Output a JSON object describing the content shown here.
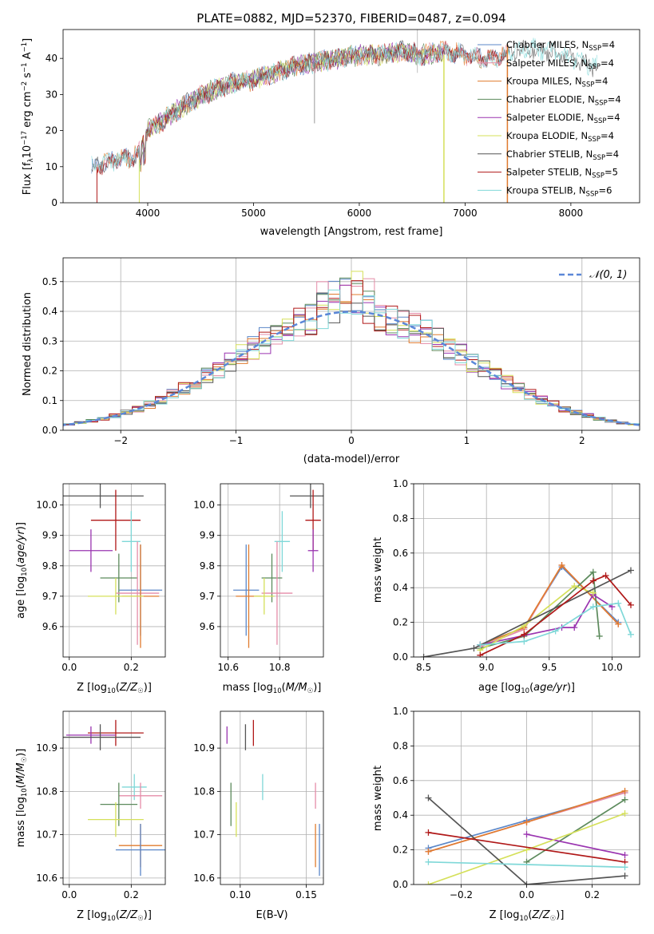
{
  "title": "PLATE=0882, MJD=52370, FIBERID=0487, z=0.094",
  "colors": {
    "Chabrier MILES": "#5b87c8",
    "Salpeter MILES": "#e58ca8",
    "Kroupa MILES": "#e07b2e",
    "Chabrier ELODIE": "#5c8a5c",
    "Salpeter ELODIE": "#9a34b0",
    "Kroupa ELODIE": "#d5e05a",
    "Chabrier STELIB": "#555555",
    "Salpeter STELIB": "#b01818",
    "Kroupa STELIB": "#7fd8d8"
  },
  "chart_data": [
    {
      "type": "line",
      "name": "spectrum",
      "xlabel": "wavelength [Angstrom, rest frame]",
      "ylabel": "Flux [f_λ10^-17 erg cm^-2 s^-1 A^-1]",
      "xlim": [
        3200,
        8650
      ],
      "ylim": [
        0,
        48
      ],
      "xticks": [
        4000,
        5000,
        6000,
        7000,
        8000
      ],
      "yticks": [
        0,
        10,
        20,
        30,
        40
      ],
      "grid": false,
      "legend_position": "top-right",
      "x": [
        3500,
        3700,
        3900,
        4000,
        4200,
        4400,
        4600,
        4800,
        5000,
        5200,
        5400,
        5600,
        5800,
        6000,
        6200,
        6400,
        6600,
        6800,
        7000,
        7200,
        7400,
        7600,
        7800,
        8000,
        8200
      ],
      "y": [
        10,
        12,
        13,
        20,
        24,
        28,
        31,
        33,
        34,
        36,
        38,
        39,
        40,
        41,
        41,
        42,
        41,
        42,
        41,
        40,
        41,
        43,
        42,
        40,
        38
      ],
      "legend": [
        {
          "label": "Chabrier MILES, N_SSP=4",
          "color_key": "Chabrier MILES"
        },
        {
          "label": "Salpeter MILES, N_SSP=4",
          "color_key": "Salpeter MILES"
        },
        {
          "label": "Kroupa MILES, N_SSP=4",
          "color_key": "Kroupa MILES"
        },
        {
          "label": "Chabrier ELODIE, N_SSP=4",
          "color_key": "Chabrier ELODIE"
        },
        {
          "label": "Salpeter ELODIE, N_SSP=4",
          "color_key": "Salpeter ELODIE"
        },
        {
          "label": "Kroupa ELODIE, N_SSP=4",
          "color_key": "Kroupa ELODIE"
        },
        {
          "label": "Chabrier STELIB, N_SSP=4",
          "color_key": "Chabrier STELIB"
        },
        {
          "label": "Salpeter STELIB, N_SSP=5",
          "color_key": "Salpeter STELIB"
        },
        {
          "label": "Kroupa STELIB, N_SSP=6",
          "color_key": "Kroupa STELIB"
        }
      ]
    },
    {
      "type": "histogram",
      "name": "residuals",
      "xlabel": "(data-model)/error",
      "ylabel": "Normed distribution",
      "xlim": [
        -2.5,
        2.5
      ],
      "ylim": [
        0,
        0.58
      ],
      "xticks": [
        -2,
        -1,
        0,
        1,
        2
      ],
      "yticks": [
        0.0,
        0.1,
        0.2,
        0.3,
        0.4,
        0.5
      ],
      "grid": true,
      "legend_position": "top-right",
      "reference_curve": "N(0,1)",
      "bin_width": 0.1,
      "bins_example": [
        0.02,
        0.03,
        0.05,
        0.08,
        0.12,
        0.15,
        0.21,
        0.27,
        0.33,
        0.37,
        0.4,
        0.4,
        0.37,
        0.33,
        0.27,
        0.21,
        0.15,
        0.12,
        0.08,
        0.05,
        0.03
      ]
    },
    {
      "type": "scatter",
      "name": "Z vs age",
      "xlabel": "Z [log10(Z/Z☉)]",
      "ylabel": "age  [log10(age/yr)]",
      "xlim": [
        -0.02,
        0.31
      ],
      "ylim": [
        9.5,
        10.07
      ],
      "xticks": [
        0.0,
        0.2
      ],
      "yticks": [
        9.6,
        9.7,
        9.8,
        9.9,
        10.0
      ],
      "grid": true,
      "points": [
        {
          "color_key": "Chabrier STELIB",
          "x": 0.1,
          "y": 10.03,
          "xerr": 0.14,
          "yerr": 0.04
        },
        {
          "color_key": "Salpeter STELIB",
          "x": 0.15,
          "y": 9.95,
          "xerr": 0.08,
          "yerr": 0.1
        },
        {
          "color_key": "Kroupa STELIB",
          "x": 0.2,
          "y": 9.88,
          "xerr": 0.03,
          "yerr": 0.1
        },
        {
          "color_key": "Salpeter ELODIE",
          "x": 0.07,
          "y": 9.85,
          "xerr": 0.07,
          "yerr": 0.07
        },
        {
          "color_key": "Chabrier ELODIE",
          "x": 0.16,
          "y": 9.76,
          "xerr": 0.06,
          "yerr": 0.08
        },
        {
          "color_key": "Chabrier MILES",
          "x": 0.23,
          "y": 9.72,
          "xerr": 0.07,
          "yerr": 0.15
        },
        {
          "color_key": "Salpeter MILES",
          "x": 0.22,
          "y": 9.71,
          "xerr": 0.07,
          "yerr": 0.17
        },
        {
          "color_key": "Kroupa MILES",
          "x": 0.23,
          "y": 9.7,
          "xerr": 0.06,
          "yerr": 0.17
        },
        {
          "color_key": "Kroupa ELODIE",
          "x": 0.15,
          "y": 9.7,
          "xerr": 0.09,
          "yerr": 0.06
        }
      ]
    },
    {
      "type": "scatter",
      "name": "mass vs age",
      "xlabel": "mass [log10(M/M☉)]",
      "ylabel": "",
      "xlim": [
        10.57,
        10.97
      ],
      "ylim": [
        9.5,
        10.07
      ],
      "xticks": [
        10.6,
        10.8
      ],
      "yticks": [
        9.6,
        9.7,
        9.8,
        9.9,
        10.0
      ],
      "grid": true,
      "points": [
        {
          "color_key": "Chabrier STELIB",
          "x": 10.92,
          "y": 10.03,
          "xerr": 0.08,
          "yerr": 0.04
        },
        {
          "color_key": "Salpeter STELIB",
          "x": 10.93,
          "y": 9.95,
          "xerr": 0.03,
          "yerr": 0.1
        },
        {
          "color_key": "Kroupa STELIB",
          "x": 10.81,
          "y": 9.88,
          "xerr": 0.03,
          "yerr": 0.1
        },
        {
          "color_key": "Salpeter ELODIE",
          "x": 10.93,
          "y": 9.85,
          "xerr": 0.02,
          "yerr": 0.07
        },
        {
          "color_key": "Chabrier ELODIE",
          "x": 10.77,
          "y": 9.76,
          "xerr": 0.04,
          "yerr": 0.08
        },
        {
          "color_key": "Chabrier MILES",
          "x": 10.67,
          "y": 9.72,
          "xerr": 0.05,
          "yerr": 0.15
        },
        {
          "color_key": "Salpeter MILES",
          "x": 10.79,
          "y": 9.71,
          "xerr": 0.06,
          "yerr": 0.17
        },
        {
          "color_key": "Kroupa MILES",
          "x": 10.68,
          "y": 9.7,
          "xerr": 0.05,
          "yerr": 0.17
        },
        {
          "color_key": "Kroupa ELODIE",
          "x": 10.74,
          "y": 9.7,
          "xerr": 0.04,
          "yerr": 0.06
        }
      ]
    },
    {
      "type": "line",
      "name": "age mass weight",
      "xlabel": "age  [log10(age/yr)]",
      "ylabel": "mass weight",
      "xlim": [
        8.42,
        10.22
      ],
      "ylim": [
        0,
        1.0
      ],
      "xticks": [
        8.5,
        9.0,
        9.5,
        10.0
      ],
      "yticks": [
        0.0,
        0.2,
        0.4,
        0.6,
        0.8,
        1.0
      ],
      "grid": true,
      "series": [
        {
          "color_key": "Chabrier MILES",
          "x": [
            8.95,
            9.3,
            9.6,
            10.05
          ],
          "y": [
            0.07,
            0.17,
            0.52,
            0.2
          ]
        },
        {
          "color_key": "Salpeter MILES",
          "x": [
            8.95,
            9.3,
            9.6,
            10.05
          ],
          "y": [
            0.06,
            0.16,
            0.53,
            0.19
          ]
        },
        {
          "color_key": "Kroupa MILES",
          "x": [
            8.95,
            9.3,
            9.6,
            10.05
          ],
          "y": [
            0.07,
            0.17,
            0.53,
            0.19
          ]
        },
        {
          "color_key": "Chabrier ELODIE",
          "x": [
            8.95,
            9.3,
            9.85,
            9.9
          ],
          "y": [
            0.05,
            0.12,
            0.49,
            0.12
          ]
        },
        {
          "color_key": "Salpeter ELODIE",
          "x": [
            8.95,
            9.6,
            9.7,
            9.85,
            10.0
          ],
          "y": [
            0.07,
            0.17,
            0.17,
            0.36,
            0.29
          ]
        },
        {
          "color_key": "Kroupa ELODIE",
          "x": [
            8.95,
            9.3,
            9.7,
            9.85
          ],
          "y": [
            0.04,
            0.18,
            0.41,
            0.37
          ]
        },
        {
          "color_key": "Chabrier STELIB",
          "x": [
            8.5,
            8.9,
            10.15
          ],
          "y": [
            0.0,
            0.05,
            0.5
          ]
        },
        {
          "color_key": "Salpeter STELIB",
          "x": [
            8.95,
            9.3,
            9.85,
            9.95,
            10.15
          ],
          "y": [
            0.01,
            0.13,
            0.44,
            0.47,
            0.3
          ]
        },
        {
          "color_key": "Kroupa STELIB",
          "x": [
            8.95,
            9.3,
            9.55,
            9.85,
            10.05,
            10.15
          ],
          "y": [
            0.07,
            0.09,
            0.15,
            0.29,
            0.31,
            0.13
          ]
        }
      ]
    },
    {
      "type": "scatter",
      "name": "Z vs mass",
      "xlabel": "Z [log10(Z/Z☉)]",
      "ylabel": "mass [log10(M/M☉)]",
      "xlim": [
        -0.02,
        0.31
      ],
      "ylim": [
        10.585,
        10.985
      ],
      "xticks": [
        0.0,
        0.2
      ],
      "yticks": [
        10.6,
        10.7,
        10.8,
        10.9
      ],
      "grid": true,
      "points": [
        {
          "color_key": "Salpeter STELIB",
          "x": 0.15,
          "y": 10.935,
          "xerr": 0.09,
          "yerr": 0.03
        },
        {
          "color_key": "Salpeter ELODIE",
          "x": 0.07,
          "y": 10.93,
          "xerr": 0.08,
          "yerr": 0.02
        },
        {
          "color_key": "Chabrier STELIB",
          "x": 0.1,
          "y": 10.925,
          "xerr": 0.13,
          "yerr": 0.03
        },
        {
          "color_key": "Kroupa STELIB",
          "x": 0.21,
          "y": 10.81,
          "xerr": 0.04,
          "yerr": 0.03
        },
        {
          "color_key": "Salpeter MILES",
          "x": 0.23,
          "y": 10.79,
          "xerr": 0.07,
          "yerr": 0.03
        },
        {
          "color_key": "Chabrier ELODIE",
          "x": 0.16,
          "y": 10.77,
          "xerr": 0.06,
          "yerr": 0.05
        },
        {
          "color_key": "Kroupa ELODIE",
          "x": 0.15,
          "y": 10.735,
          "xerr": 0.09,
          "yerr": 0.04
        },
        {
          "color_key": "Kroupa MILES",
          "x": 0.23,
          "y": 10.675,
          "xerr": 0.07,
          "yerr": 0.05
        },
        {
          "color_key": "Chabrier MILES",
          "x": 0.23,
          "y": 10.665,
          "xerr": 0.08,
          "yerr": 0.06
        }
      ]
    },
    {
      "type": "scatter",
      "name": "E(B-V) vs mass",
      "xlabel": "E(B-V)",
      "ylabel": "",
      "xlim": [
        0.085,
        0.163
      ],
      "ylim": [
        10.585,
        10.985
      ],
      "xticks": [
        0.1,
        0.15
      ],
      "yticks": [
        10.6,
        10.7,
        10.8,
        10.9
      ],
      "grid": true,
      "points": [
        {
          "color_key": "Salpeter STELIB",
          "x": 0.11,
          "y": 10.935,
          "yerr": 0.03
        },
        {
          "color_key": "Salpeter ELODIE",
          "x": 0.09,
          "y": 10.93,
          "yerr": 0.02
        },
        {
          "color_key": "Chabrier STELIB",
          "x": 0.104,
          "y": 10.925,
          "yerr": 0.03
        },
        {
          "color_key": "Kroupa STELIB",
          "x": 0.117,
          "y": 10.81,
          "yerr": 0.03
        },
        {
          "color_key": "Salpeter MILES",
          "x": 0.157,
          "y": 10.79,
          "yerr": 0.03
        },
        {
          "color_key": "Chabrier ELODIE",
          "x": 0.093,
          "y": 10.77,
          "yerr": 0.05
        },
        {
          "color_key": "Kroupa ELODIE",
          "x": 0.097,
          "y": 10.735,
          "yerr": 0.04
        },
        {
          "color_key": "Kroupa MILES",
          "x": 0.157,
          "y": 10.675,
          "yerr": 0.05
        },
        {
          "color_key": "Chabrier MILES",
          "x": 0.16,
          "y": 10.665,
          "yerr": 0.06
        }
      ]
    },
    {
      "type": "line",
      "name": "Z mass weight",
      "xlabel": "Z [log10(Z/Z☉)]",
      "ylabel": "mass weight",
      "xlim": [
        -0.345,
        0.345
      ],
      "ylim": [
        0,
        1.0
      ],
      "xticks": [
        -0.2,
        0.0,
        0.2
      ],
      "yticks": [
        0.0,
        0.2,
        0.4,
        0.6,
        0.8,
        1.0
      ],
      "grid": true,
      "series": [
        {
          "color_key": "Chabrier MILES",
          "x": [
            -0.3,
            0.0,
            0.3
          ],
          "y": [
            0.21,
            0.37,
            0.53
          ]
        },
        {
          "color_key": "Salpeter MILES",
          "x": [
            -0.3,
            0.0,
            0.3
          ],
          "y": [
            0.19,
            0.36,
            0.53
          ]
        },
        {
          "color_key": "Kroupa MILES",
          "x": [
            -0.3,
            0.0,
            0.3
          ],
          "y": [
            0.19,
            0.36,
            0.54
          ]
        },
        {
          "color_key": "Chabrier ELODIE",
          "x": [
            0.0,
            0.3
          ],
          "y": [
            0.13,
            0.49
          ]
        },
        {
          "color_key": "Salpeter ELODIE",
          "x": [
            0.0,
            0.3
          ],
          "y": [
            0.29,
            0.17
          ]
        },
        {
          "color_key": "Kroupa ELODIE",
          "x": [
            -0.3,
            0.0,
            0.3
          ],
          "y": [
            0.0,
            0.2,
            0.41
          ]
        },
        {
          "color_key": "Chabrier STELIB",
          "x": [
            -0.3,
            0.0,
            0.3
          ],
          "y": [
            0.5,
            0.0,
            0.05
          ]
        },
        {
          "color_key": "Salpeter STELIB",
          "x": [
            -0.3,
            0.3
          ],
          "y": [
            0.3,
            0.13
          ]
        },
        {
          "color_key": "Kroupa STELIB",
          "x": [
            -0.3,
            0.3
          ],
          "y": [
            0.13,
            0.1
          ]
        }
      ]
    }
  ]
}
